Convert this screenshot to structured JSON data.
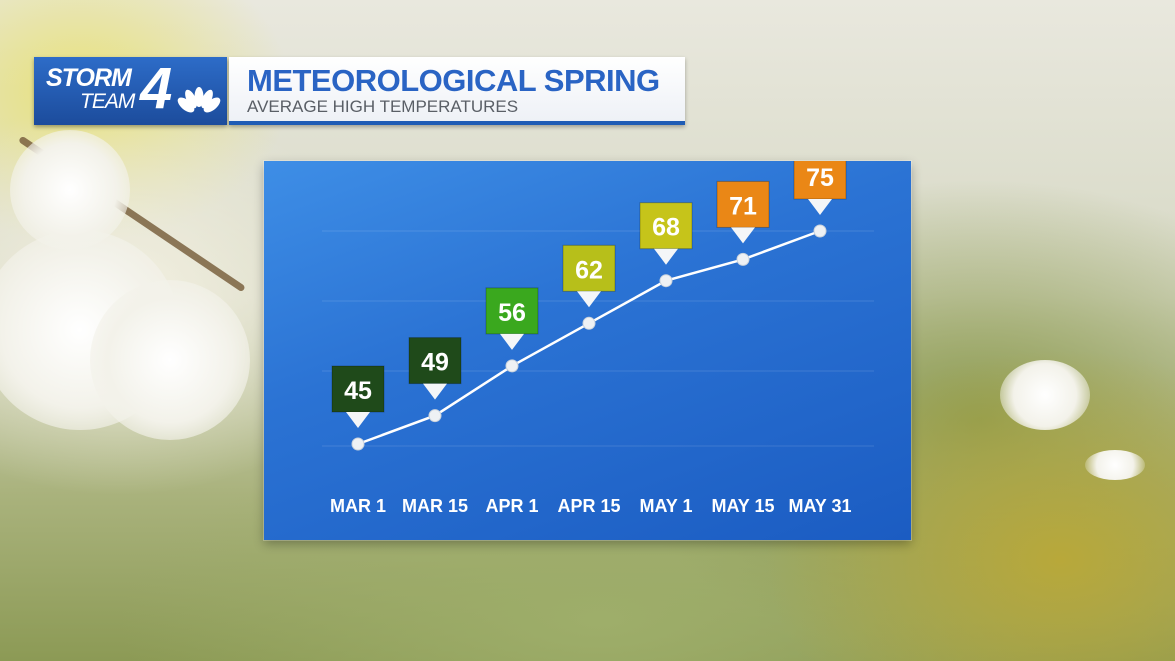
{
  "brand": {
    "station_top": "STORM",
    "station_bottom": "TEAM",
    "station_number": "4"
  },
  "header": {
    "title": "METEOROLOGICAL SPRING",
    "subtitle": "AVERAGE HIGH TEMPERATURES"
  },
  "chart_data": {
    "type": "line",
    "title": "METEOROLOGICAL SPRING",
    "subtitle": "AVERAGE HIGH TEMPERATURES",
    "xlabel": "",
    "ylabel": "",
    "categories": [
      "MAR 1",
      "MAR 15",
      "APR 1",
      "APR 15",
      "MAY 1",
      "MAY 15",
      "MAY 31"
    ],
    "values": [
      45,
      49,
      56,
      62,
      68,
      71,
      75
    ],
    "ylim": [
      40,
      80
    ],
    "grid": true,
    "marker_colors": [
      "#1f4a1a",
      "#1f4a1a",
      "#3aa81e",
      "#b7bf1a",
      "#c6c41a",
      "#ea8716",
      "#ea8716"
    ],
    "line_color": "#ffffff"
  },
  "colors": {
    "accent": "#2a64c4",
    "panel": "#2b73d4"
  }
}
